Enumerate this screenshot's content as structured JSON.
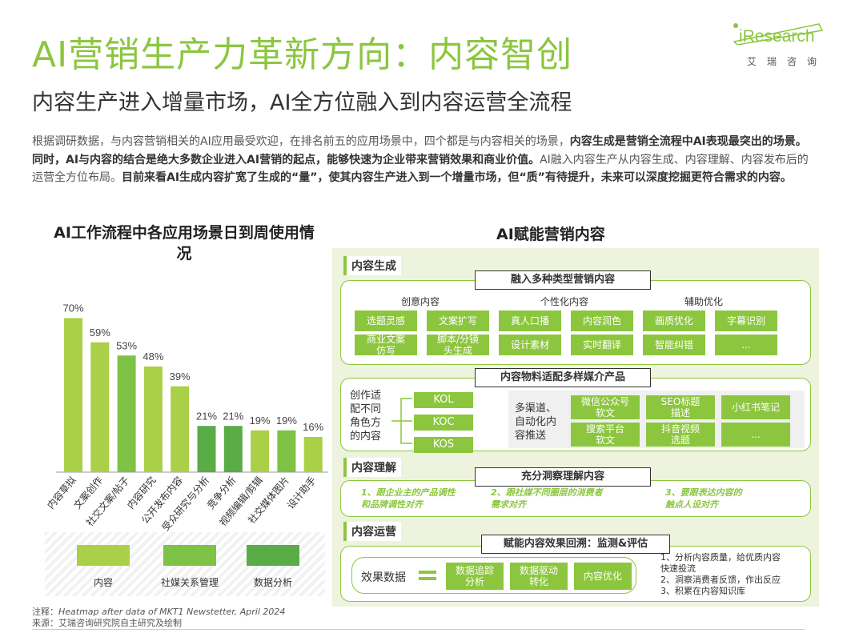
{
  "header": {
    "title": "AI营销生产力革新方向：内容智创",
    "subtitle": "内容生产进入增量市场，AI全方位融入到内容运营全流程",
    "logo_brand": "iResearch",
    "logo_cn": "艾瑞咨询"
  },
  "intro": {
    "p1": "根据调研数据，与内容营销相关的AI应用最受欢迎，在排名前五的应用场景中，四个都是与内容相关的场景，",
    "p1_bold": "内容生成是营销全流程中AI表现最突出的场景。同时，AI与内容的结合是绝大多数企业进入AI营销的起点，能够快速为企业带来营销效果和商业价值。",
    "p2": "AI融入内容生产从内容生成、内容理解、内容发布后的运营全方位布局。",
    "p2_bold": "目前来看AI生成内容扩宽了生成的“量”，使其内容生产进入到一个增量市场，但“质”有待提升，未来可以深度挖掘更符合需求的内容。"
  },
  "chart_title": "AI工作流程中各应用场景日到周使用情况",
  "chart_data": {
    "type": "bar",
    "categories": [
      "内容草拟",
      "文案创作",
      "社交文案/帖子",
      "内容研究",
      "公开发布内容",
      "受众研究与分析",
      "竞争分析",
      "视频编辑/剪辑",
      "社交媒体图片",
      "设计助手"
    ],
    "values": [
      70,
      59,
      53,
      48,
      39,
      21,
      21,
      19,
      19,
      16
    ],
    "value_labels": [
      "70%",
      "59%",
      "53%",
      "48%",
      "39%",
      "21%",
      "21%",
      "19%",
      "19%",
      "16%"
    ],
    "groups": [
      0,
      0,
      1,
      0,
      0,
      2,
      2,
      0,
      1,
      0
    ],
    "group_names": [
      "内容",
      "社媒关系管理",
      "数据分析"
    ],
    "group_colors": [
      "#a9d046",
      "#7ec246",
      "#5aac47"
    ],
    "ylim": [
      0,
      80
    ]
  },
  "footnote": {
    "note_label": "注释：",
    "note_text": "Heatmap after data of MKT1 Newstetter, April 2024",
    "source_label": "来源：",
    "source_text": "艾瑞咨询研究院自主研究及绘制"
  },
  "panel": {
    "title": "AI赋能营销内容",
    "gen": {
      "label": "内容生成",
      "tag1": "融入多种类型营销内容",
      "cat1": "创意内容",
      "cat2": "个性化内容",
      "cat3": "辅助优化",
      "items": [
        "选题灵感",
        "文案扩写",
        "真人口播",
        "内容润色",
        "画质优化",
        "字幕识别",
        "商业文案\n仿写",
        "脚本/分镜\n头生成",
        "设计素材",
        "实时翻译",
        "智能纠错",
        "..."
      ],
      "tag2": "内容物料适配多样媒介产品",
      "adapt": "创作适\n配不同\n角色方\n的内容",
      "roles": [
        "KOL",
        "KOC",
        "KOS"
      ],
      "multi": "多渠道、\n自动化内\n容推送",
      "media": [
        "微信公众号\n软文",
        "SEO标题\n描述",
        "小红书笔记",
        "搜索平台\n软文",
        "抖音视频\n选题",
        "..."
      ]
    },
    "understand": {
      "label": "内容理解",
      "tag": "充分洞察理解内容",
      "points": [
        "1、跟企业主的产品调性\n和品牌调性对齐",
        "2、跟社媒不同圈层的消费者\n需求对齐",
        "3、要跟表达内容的\n触点人设对齐"
      ]
    },
    "operate": {
      "label": "内容运营",
      "tag": "赋能内容效果回溯：监测&评估",
      "effect": "效果数据",
      "steps": [
        "数据追踪\n分析",
        "数据驱动\n转化",
        "内容优化"
      ],
      "list": "1、分析内容质量，给优质内容\n快速投流\n2、洞察消费者反馈，作出反应\n3、积累在内容知识库"
    }
  },
  "colors": {
    "accent": "#8cc63f",
    "panel_bg": "#eef3dd"
  }
}
